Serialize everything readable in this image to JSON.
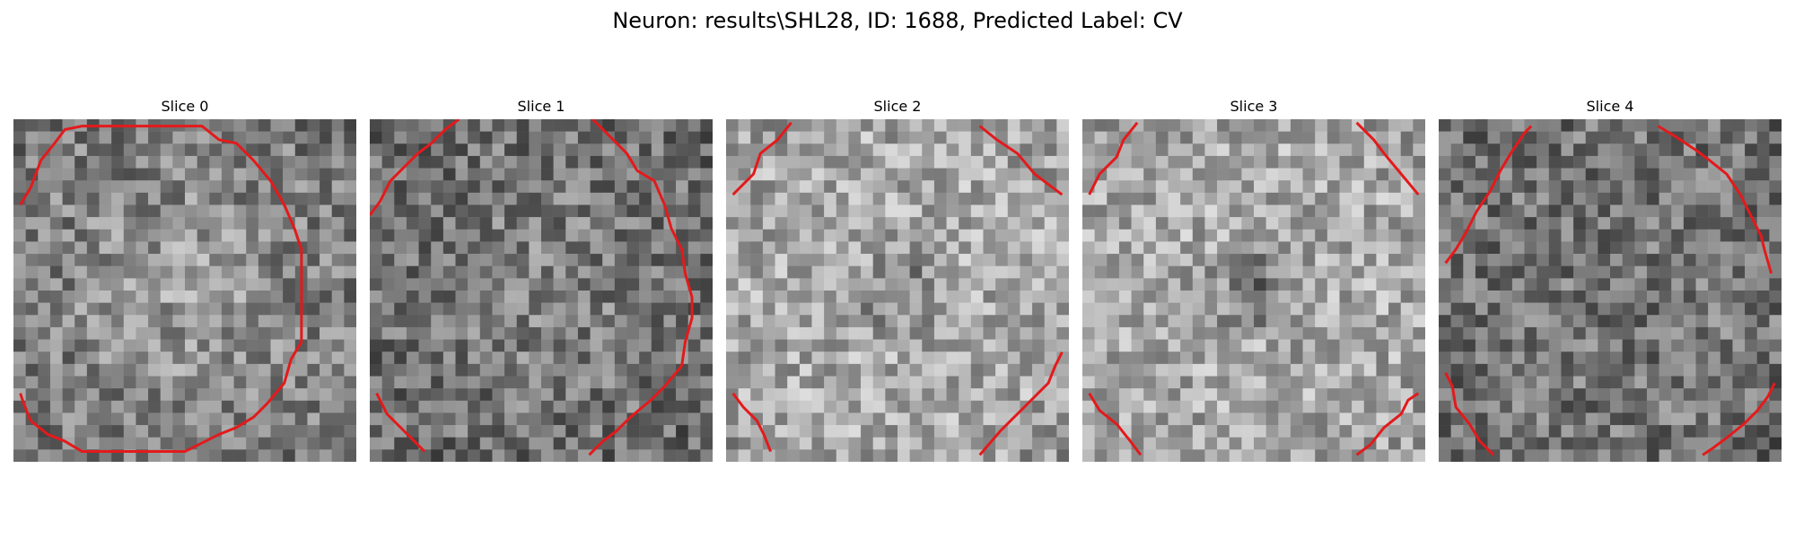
{
  "figure": {
    "title": "Neuron: results\\SHL28, ID: 1688, Predicted Label: CV"
  },
  "contour_color": "#e31a1c",
  "colormap": "gray",
  "grid_size": 28,
  "slices": [
    {
      "title": "Slice 0",
      "seed": 11,
      "mean": 0.5,
      "brightCenter": 0.13,
      "darkCenter": 0.0,
      "contour": [
        [
          [
            0.02,
            0.25
          ],
          [
            0.05,
            0.2
          ],
          [
            0.08,
            0.12
          ],
          [
            0.12,
            0.07
          ],
          [
            0.15,
            0.03
          ],
          [
            0.2,
            0.02
          ],
          [
            0.55,
            0.02
          ],
          [
            0.6,
            0.06
          ],
          [
            0.65,
            0.07
          ],
          [
            0.7,
            0.12
          ],
          [
            0.75,
            0.18
          ],
          [
            0.79,
            0.25
          ],
          [
            0.82,
            0.32
          ],
          [
            0.84,
            0.38
          ],
          [
            0.84,
            0.65
          ],
          [
            0.81,
            0.7
          ],
          [
            0.79,
            0.77
          ],
          [
            0.74,
            0.83
          ],
          [
            0.7,
            0.87
          ],
          [
            0.65,
            0.9
          ],
          [
            0.6,
            0.92
          ],
          [
            0.5,
            0.97
          ],
          [
            0.2,
            0.97
          ],
          [
            0.15,
            0.94
          ],
          [
            0.1,
            0.92
          ],
          [
            0.05,
            0.88
          ],
          [
            0.03,
            0.83
          ],
          [
            0.02,
            0.8
          ]
        ]
      ]
    },
    {
      "title": "Slice 1",
      "seed": 23,
      "mean": 0.45,
      "brightCenter": 0.08,
      "darkCenter": 0.0,
      "contour": [
        [
          [
            0.0,
            0.28
          ],
          [
            0.03,
            0.24
          ],
          [
            0.06,
            0.18
          ],
          [
            0.1,
            0.14
          ],
          [
            0.14,
            0.1
          ],
          [
            0.18,
            0.07
          ],
          [
            0.22,
            0.03
          ],
          [
            0.26,
            0.0
          ]
        ],
        [
          [
            0.65,
            0.0
          ],
          [
            0.7,
            0.05
          ],
          [
            0.75,
            0.1
          ],
          [
            0.78,
            0.15
          ],
          [
            0.83,
            0.18
          ],
          [
            0.86,
            0.25
          ],
          [
            0.88,
            0.32
          ],
          [
            0.91,
            0.38
          ],
          [
            0.92,
            0.45
          ],
          [
            0.94,
            0.52
          ],
          [
            0.94,
            0.58
          ],
          [
            0.92,
            0.65
          ],
          [
            0.91,
            0.72
          ],
          [
            0.86,
            0.78
          ],
          [
            0.82,
            0.82
          ],
          [
            0.76,
            0.87
          ],
          [
            0.72,
            0.91
          ],
          [
            0.68,
            0.94
          ],
          [
            0.64,
            0.98
          ]
        ],
        [
          [
            0.02,
            0.8
          ],
          [
            0.05,
            0.86
          ],
          [
            0.09,
            0.9
          ],
          [
            0.12,
            0.93
          ],
          [
            0.16,
            0.97
          ]
        ]
      ]
    },
    {
      "title": "Slice 2",
      "seed": 37,
      "mean": 0.66,
      "brightCenter": 0.0,
      "darkCenter": 0.22,
      "contour": [
        [
          [
            0.02,
            0.22
          ],
          [
            0.08,
            0.16
          ],
          [
            0.1,
            0.1
          ],
          [
            0.15,
            0.06
          ],
          [
            0.19,
            0.01
          ]
        ],
        [
          [
            0.74,
            0.02
          ],
          [
            0.79,
            0.06
          ],
          [
            0.85,
            0.1
          ],
          [
            0.9,
            0.16
          ],
          [
            0.98,
            0.22
          ]
        ],
        [
          [
            0.98,
            0.68
          ],
          [
            0.96,
            0.72
          ],
          [
            0.94,
            0.77
          ],
          [
            0.9,
            0.81
          ],
          [
            0.85,
            0.86
          ],
          [
            0.8,
            0.91
          ],
          [
            0.74,
            0.98
          ]
        ],
        [
          [
            0.02,
            0.8
          ],
          [
            0.05,
            0.84
          ],
          [
            0.09,
            0.88
          ],
          [
            0.11,
            0.92
          ],
          [
            0.13,
            0.97
          ]
        ]
      ]
    },
    {
      "title": "Slice 3",
      "seed": 53,
      "mean": 0.66,
      "brightCenter": 0.0,
      "darkCenter": 0.28,
      "contour": [
        [
          [
            0.02,
            0.22
          ],
          [
            0.05,
            0.16
          ],
          [
            0.1,
            0.11
          ],
          [
            0.12,
            0.06
          ],
          [
            0.16,
            0.01
          ]
        ],
        [
          [
            0.8,
            0.01
          ],
          [
            0.85,
            0.06
          ],
          [
            0.88,
            0.1
          ],
          [
            0.93,
            0.16
          ],
          [
            0.98,
            0.22
          ]
        ],
        [
          [
            0.98,
            0.8
          ],
          [
            0.95,
            0.82
          ],
          [
            0.93,
            0.86
          ],
          [
            0.88,
            0.9
          ],
          [
            0.84,
            0.95
          ],
          [
            0.8,
            0.98
          ]
        ],
        [
          [
            0.02,
            0.8
          ],
          [
            0.05,
            0.85
          ],
          [
            0.1,
            0.89
          ],
          [
            0.14,
            0.94
          ],
          [
            0.17,
            0.98
          ]
        ]
      ]
    },
    {
      "title": "Slice 4",
      "seed": 71,
      "mean": 0.46,
      "brightCenter": 0.0,
      "darkCenter": 0.06,
      "contour": [
        [
          [
            0.02,
            0.42
          ],
          [
            0.05,
            0.38
          ],
          [
            0.08,
            0.33
          ],
          [
            0.11,
            0.27
          ],
          [
            0.15,
            0.21
          ],
          [
            0.18,
            0.15
          ],
          [
            0.21,
            0.1
          ],
          [
            0.25,
            0.04
          ],
          [
            0.27,
            0.02
          ]
        ],
        [
          [
            0.64,
            0.02
          ],
          [
            0.69,
            0.05
          ],
          [
            0.75,
            0.09
          ],
          [
            0.79,
            0.12
          ],
          [
            0.84,
            0.16
          ],
          [
            0.88,
            0.22
          ],
          [
            0.91,
            0.28
          ],
          [
            0.94,
            0.34
          ],
          [
            0.95,
            0.38
          ],
          [
            0.97,
            0.45
          ]
        ],
        [
          [
            0.98,
            0.77
          ],
          [
            0.96,
            0.81
          ],
          [
            0.93,
            0.85
          ],
          [
            0.89,
            0.89
          ],
          [
            0.84,
            0.93
          ],
          [
            0.8,
            0.96
          ],
          [
            0.77,
            0.98
          ]
        ],
        [
          [
            0.02,
            0.74
          ],
          [
            0.04,
            0.78
          ],
          [
            0.05,
            0.84
          ],
          [
            0.09,
            0.89
          ],
          [
            0.12,
            0.94
          ],
          [
            0.16,
            0.98
          ]
        ]
      ]
    }
  ]
}
